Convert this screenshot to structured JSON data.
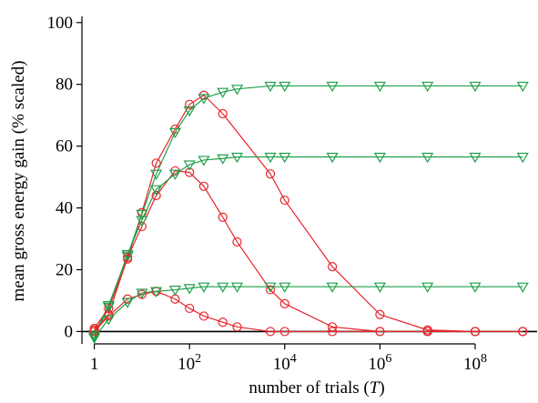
{
  "chart_data": {
    "type": "line",
    "xlabel_prefix": "number of trials (",
    "xlabel_symbol": "T",
    "xlabel_suffix": ")",
    "ylabel": "mean gross energy gain (% scaled)",
    "x_scale": "log",
    "xlim": [
      0.55,
      2000000000
    ],
    "ylim": [
      -4,
      102
    ],
    "x_ticks": [
      {
        "value": 1,
        "base": "1",
        "exp": ""
      },
      {
        "value": 100,
        "base": "10",
        "exp": "2"
      },
      {
        "value": 10000,
        "base": "10",
        "exp": "4"
      },
      {
        "value": 1000000,
        "base": "10",
        "exp": "6"
      },
      {
        "value": 100000000,
        "base": "10",
        "exp": "8"
      }
    ],
    "y_ticks": [
      0,
      20,
      40,
      60,
      80,
      100
    ],
    "grid": false,
    "reference_line_y": 0,
    "colors": {
      "red": "#e8252b",
      "green": "#1fa04a",
      "axis": "#000000"
    },
    "series": [
      {
        "color": "red",
        "marker": "circle",
        "x": [
          1,
          2,
          5,
          10,
          20,
          50,
          100,
          200,
          500,
          5000,
          10000,
          100000,
          1000000,
          10000000,
          100000000,
          1000000000
        ],
        "y": [
          1.0,
          7.5,
          23.5,
          38.5,
          54.5,
          65.5,
          73.5,
          76.5,
          70.5,
          51.0,
          42.5,
          21.0,
          5.5,
          0.5,
          0.0,
          0.0
        ]
      },
      {
        "color": "green",
        "marker": "triangle",
        "x": [
          1,
          2,
          5,
          10,
          20,
          50,
          100,
          200,
          500,
          1000,
          5000,
          10000,
          100000,
          1000000,
          10000000,
          100000000,
          1000000000
        ],
        "y": [
          -1.0,
          8.5,
          24.5,
          38.0,
          51.0,
          64.5,
          71.5,
          75.5,
          77.5,
          78.5,
          79.5,
          79.5,
          79.5,
          79.5,
          79.5,
          79.5,
          79.5
        ]
      },
      {
        "color": "red",
        "marker": "circle",
        "x": [
          1,
          2,
          5,
          10,
          20,
          50,
          100,
          200,
          500,
          1000,
          5000,
          10000,
          100000,
          1000000,
          10000000,
          100000000,
          1000000000
        ],
        "y": [
          0.5,
          5.5,
          24.0,
          34.0,
          44.0,
          52.0,
          51.5,
          47.0,
          37.0,
          29.0,
          13.5,
          9.0,
          1.5,
          0.0,
          0.0,
          0.0,
          0.0
        ]
      },
      {
        "color": "green",
        "marker": "triangle",
        "x": [
          1,
          2,
          5,
          10,
          20,
          50,
          100,
          200,
          500,
          1000,
          5000,
          10000,
          100000,
          1000000,
          10000000,
          100000000,
          1000000000
        ],
        "y": [
          -1.5,
          8.0,
          25.0,
          36.0,
          46.0,
          51.0,
          54.0,
          55.5,
          56.0,
          56.5,
          56.5,
          56.5,
          56.5,
          56.5,
          56.5,
          56.5,
          56.5
        ]
      },
      {
        "color": "red",
        "marker": "circle",
        "x": [
          1,
          2,
          5,
          10,
          20,
          50,
          100,
          200,
          500,
          1000,
          5000,
          10000,
          100000,
          1000000,
          10000000,
          100000000,
          1000000000
        ],
        "y": [
          0.0,
          5.0,
          10.5,
          12.0,
          13.0,
          10.5,
          7.5,
          5.0,
          3.0,
          1.5,
          0.0,
          0.0,
          0.0,
          0.0,
          0.0,
          0.0,
          0.0
        ]
      },
      {
        "color": "green",
        "marker": "triangle",
        "x": [
          1,
          2,
          5,
          10,
          20,
          50,
          100,
          200,
          500,
          1000,
          5000,
          10000,
          100000,
          1000000,
          10000000,
          100000000,
          1000000000
        ],
        "y": [
          -2.0,
          4.0,
          9.5,
          12.5,
          13.0,
          13.5,
          14.0,
          14.5,
          14.5,
          14.5,
          14.5,
          14.5,
          14.5,
          14.5,
          14.5,
          14.5,
          14.5
        ]
      }
    ]
  }
}
